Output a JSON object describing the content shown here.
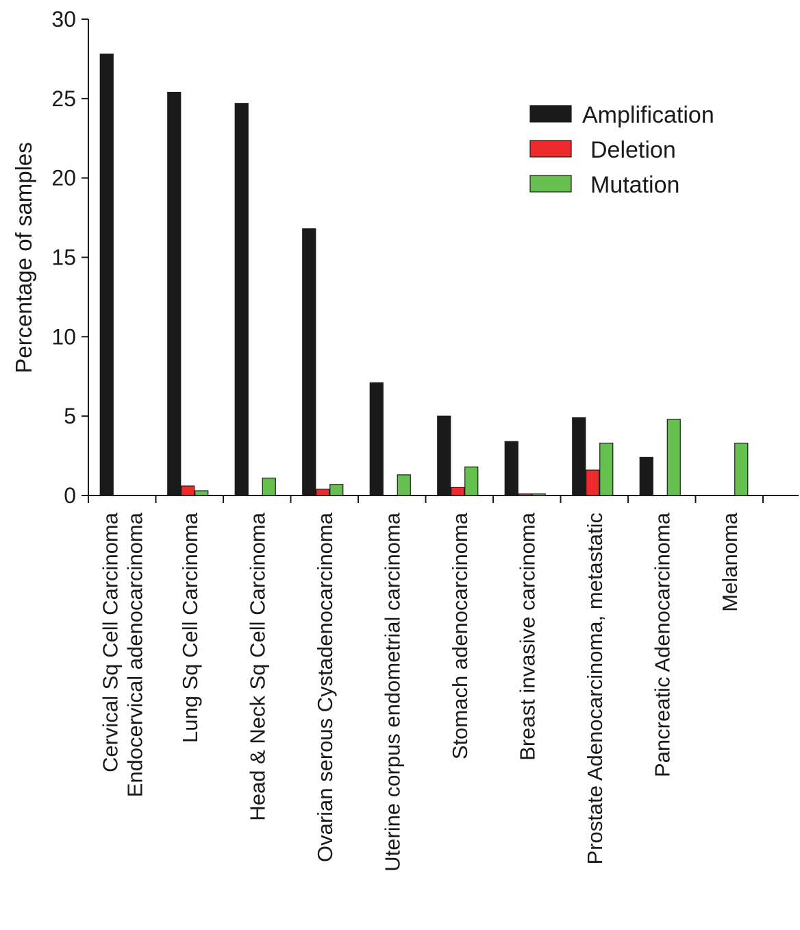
{
  "chart_data": {
    "type": "bar",
    "ylabel": "Percentage of samples",
    "ylim": [
      0,
      30
    ],
    "yticks": [
      0,
      5,
      10,
      15,
      20,
      25,
      30
    ],
    "grid": false,
    "legend_position": "top-right",
    "categories": [
      [
        "Cervical Sq Cell Carcinoma",
        "Endocervical adenocarcinoma"
      ],
      [
        "Lung Sq Cell Carcinoma"
      ],
      [
        "Head & Neck Sq Cell Carcinoma"
      ],
      [
        "Ovarian serous Cystadenocarcinoma"
      ],
      [
        "Uterine corpus endometrial carcinoma"
      ],
      [
        "Stomach adenocarcinoma"
      ],
      [
        "Breast invasive carcinoma"
      ],
      [
        "Prostate Adenocarcinoma, metastatic"
      ],
      [
        "Pancreatic Adenocarcinoma"
      ],
      [
        "Melanoma"
      ]
    ],
    "series": [
      {
        "name": "Amplification",
        "color": "#1a1a1a",
        "values": [
          27.8,
          25.4,
          24.7,
          16.8,
          7.1,
          5.0,
          3.4,
          4.9,
          2.4,
          0
        ]
      },
      {
        "name": "Deletion",
        "color": "#ee2a2a",
        "values": [
          0,
          0.6,
          0,
          0.4,
          0,
          0.5,
          0.1,
          1.6,
          0,
          0
        ]
      },
      {
        "name": "Mutation",
        "color": "#66c04f",
        "values": [
          0,
          0.3,
          1.1,
          0.7,
          1.3,
          1.8,
          0.1,
          3.3,
          4.8,
          3.3
        ]
      }
    ]
  }
}
